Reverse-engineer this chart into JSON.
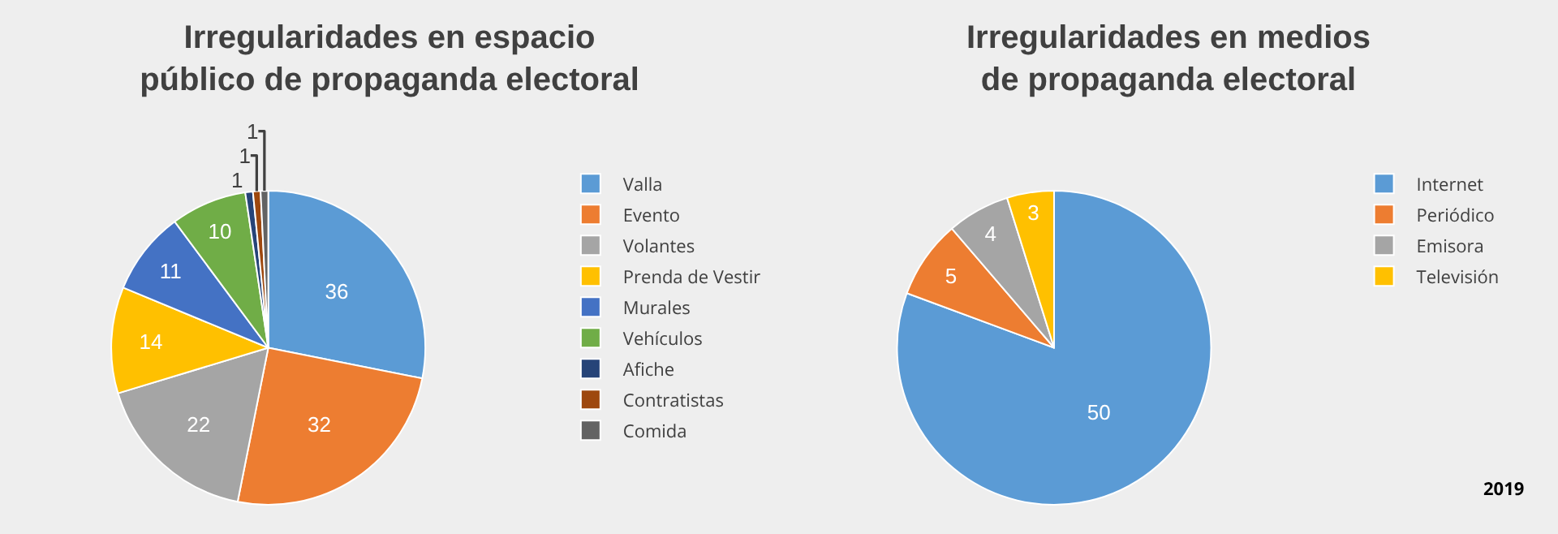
{
  "chart_data": [
    {
      "type": "pie",
      "title": "Irregularidades en espacio público de propaganda electoral",
      "categories": [
        "Valla",
        "Evento",
        "Volantes",
        "Prenda de Vestir",
        "Murales",
        "Vehículos",
        "Afiche",
        "Contratistas",
        "Comida"
      ],
      "values": [
        36,
        32,
        22,
        14,
        11,
        10,
        1,
        1,
        1
      ],
      "colors": [
        "#5b9bd5",
        "#ed7d31",
        "#a5a5a5",
        "#ffc000",
        "#4472c4",
        "#70ad47",
        "#264478",
        "#9e480e",
        "#636363"
      ],
      "data_labels": true,
      "legend": "right"
    },
    {
      "type": "pie",
      "title": "Irregularidades en medios de propaganda electoral",
      "categories": [
        "Internet",
        "Periódico",
        "Emisora",
        "Televisión"
      ],
      "values": [
        50,
        5,
        4,
        3
      ],
      "colors": [
        "#5b9bd5",
        "#ed7d31",
        "#a5a5a5",
        "#ffc000"
      ],
      "data_labels": true,
      "legend": "right",
      "annotations": [
        "2019"
      ]
    }
  ]
}
